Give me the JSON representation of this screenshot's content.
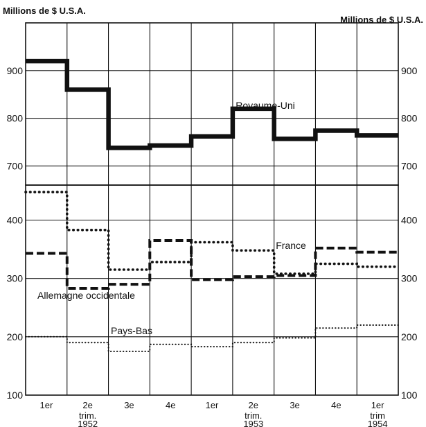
{
  "chart_data": [
    {
      "type": "line",
      "step": true,
      "unit_left": "Millions de $ U.S.A.",
      "unit_right": "Millions de $ U.S.A.",
      "ylim": [
        660,
        1000
      ],
      "yticks": [
        700,
        800,
        900
      ],
      "categories": [
        "1er",
        "2e",
        "3e",
        "4e",
        "1er",
        "2e",
        "3e",
        "4e",
        "1er"
      ],
      "series": [
        {
          "name": "Royaume-Uni",
          "style": "solid-heavy",
          "color": "#111111",
          "values": [
            920,
            860,
            738,
            743,
            762,
            820,
            757,
            774,
            764
          ]
        }
      ]
    },
    {
      "type": "line",
      "step": true,
      "ylim": [
        100,
        460
      ],
      "yticks": [
        100,
        200,
        300,
        400
      ],
      "categories": [
        "1er",
        "2e",
        "3e",
        "4e",
        "1er",
        "2e",
        "3e",
        "4e",
        "1er"
      ],
      "series": [
        {
          "name": "France",
          "style": "dotted-heavy",
          "color": "#111111",
          "values": [
            448,
            383,
            315,
            328,
            362,
            348,
            308,
            325,
            320
          ]
        },
        {
          "name": "Allemagne occidentale",
          "style": "dashed",
          "color": "#111111",
          "values": [
            343,
            283,
            290,
            365,
            298,
            303,
            305,
            352,
            345
          ]
        },
        {
          "name": "Pays-Bas",
          "style": "dotted-light",
          "color": "#111111",
          "values": [
            200,
            190,
            175,
            187,
            183,
            190,
            198,
            215,
            220
          ]
        }
      ]
    }
  ],
  "x_axis": {
    "quarters": [
      "1er",
      "2e",
      "3e",
      "4e",
      "1er",
      "2e",
      "3e",
      "4e",
      "1er"
    ],
    "periods": [
      {
        "label": "trim.",
        "year": "1952"
      },
      {
        "label": "trim.",
        "year": "1953"
      },
      {
        "label": "trim",
        "year": "1954"
      }
    ]
  }
}
